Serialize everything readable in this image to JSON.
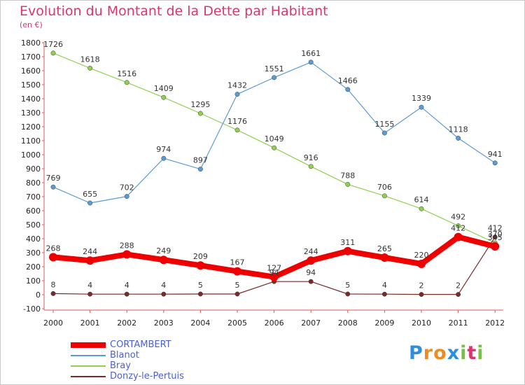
{
  "title": "Evolution du Montant de la Dette par Habitant",
  "subtitle": "(en €)",
  "logo": {
    "letters": [
      "P",
      "r",
      "o",
      "x",
      "i",
      "t",
      "i"
    ],
    "colors": [
      "#2e8fd8",
      "#f08c1e",
      "#f08c1e",
      "#2e8fd8",
      "#7ac143",
      "#d9366f",
      "#7ac143"
    ]
  },
  "chart_data": {
    "type": "line",
    "categories": [
      "2000",
      "2001",
      "2002",
      "2003",
      "2004",
      "2005",
      "2006",
      "2007",
      "2008",
      "2009",
      "2010",
      "2011",
      "2012"
    ],
    "y_ticks": [
      "-100",
      "0",
      "100",
      "200",
      "300",
      "400",
      "500",
      "600",
      "700",
      "800",
      "900",
      "1000",
      "1100",
      "1200",
      "1300",
      "1400",
      "1500",
      "1600",
      "1700",
      "1800"
    ],
    "ylim": [
      -100,
      1800
    ],
    "grid": false,
    "legend_position": "bottom-left",
    "series": [
      {
        "name": "CORTAMBERT",
        "color": "#ee0000",
        "values": [
          268,
          244,
          288,
          249,
          209,
          167,
          127,
          244,
          311,
          265,
          220,
          412,
          345
        ],
        "labels": [
          "268",
          "244",
          "288",
          "249",
          "209",
          "167",
          "127",
          "244",
          "311",
          "265",
          "220",
          "412",
          "345"
        ]
      },
      {
        "name": "Blanot",
        "color": "#5b9bd5",
        "values": [
          769,
          655,
          702,
          974,
          897,
          1432,
          1551,
          1661,
          1466,
          1155,
          1339,
          1118,
          941
        ],
        "labels": [
          "769",
          "655",
          "702",
          "974",
          "897",
          "1432",
          "1551",
          "1661",
          "1466",
          "1155",
          "1339",
          "1118",
          "941"
        ]
      },
      {
        "name": "Bray",
        "color": "#8fd14f",
        "values": [
          1726,
          1618,
          1516,
          1409,
          1295,
          1176,
          1049,
          916,
          788,
          706,
          614,
          492,
          370
        ],
        "labels": [
          "1726",
          "1618",
          "1516",
          "1409",
          "1295",
          "1176",
          "1049",
          "916",
          "788",
          "706",
          "614",
          "492",
          "370"
        ]
      },
      {
        "name": "Donzy-le-Pertuis",
        "color": "#7b2a2a",
        "values": [
          8,
          4,
          4,
          4,
          5,
          5,
          94,
          94,
          5,
          4,
          2,
          2,
          412
        ],
        "labels": [
          "8",
          "4",
          "4",
          "4",
          "5",
          "5",
          "94",
          "94",
          "5",
          "4",
          "2",
          "2",
          "412"
        ]
      }
    ]
  }
}
